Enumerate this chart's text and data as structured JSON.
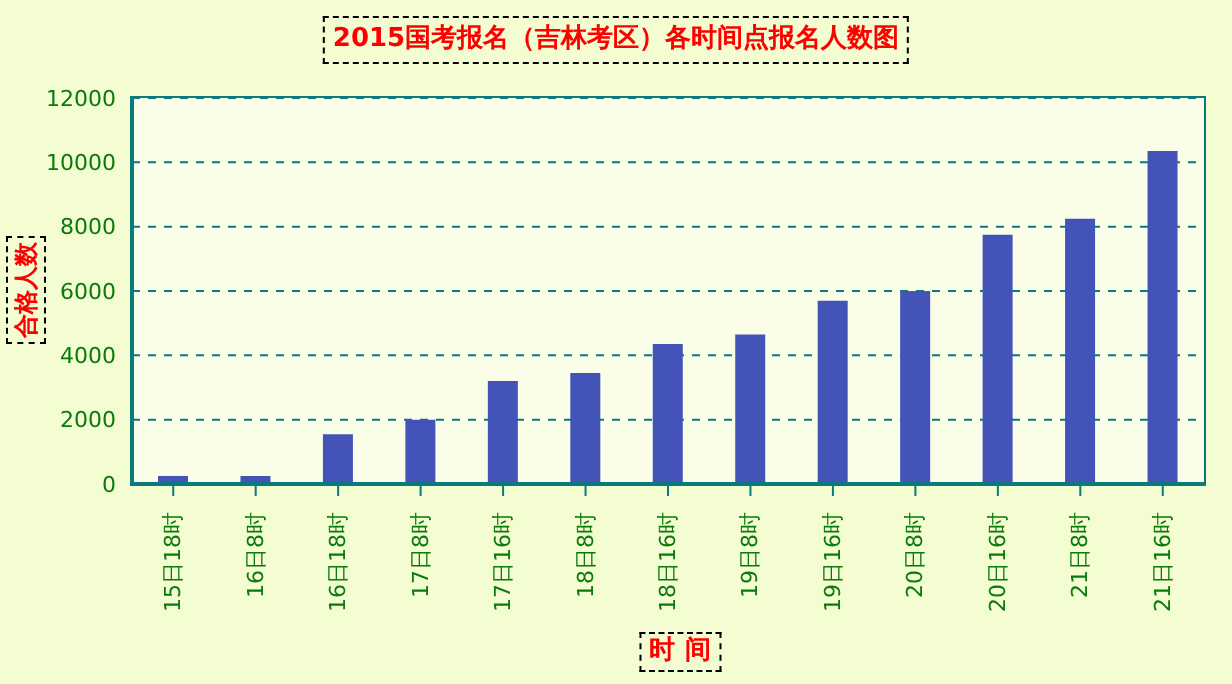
{
  "chart_data": {
    "type": "bar",
    "title": "2015国考报名（吉林考区）各时间点报名人数图",
    "xlabel": "时 间",
    "ylabel": "合格人数",
    "categories": [
      "15日18时",
      "16日8时",
      "16日18时",
      "17日8时",
      "17日16时",
      "18日8时",
      "18日16时",
      "19日8时",
      "19日16时",
      "20日8时",
      "20日16时",
      "21日8时",
      "21日16时"
    ],
    "values": [
      250,
      250,
      1550,
      2000,
      3200,
      3450,
      4350,
      4650,
      5700,
      6000,
      7750,
      8250,
      10350
    ],
    "color": "#4353b8",
    "ylim": [
      0,
      12000
    ],
    "yticks": [
      0,
      2000,
      4000,
      6000,
      8000,
      10000,
      12000
    ],
    "grid": "y",
    "legend": false
  }
}
